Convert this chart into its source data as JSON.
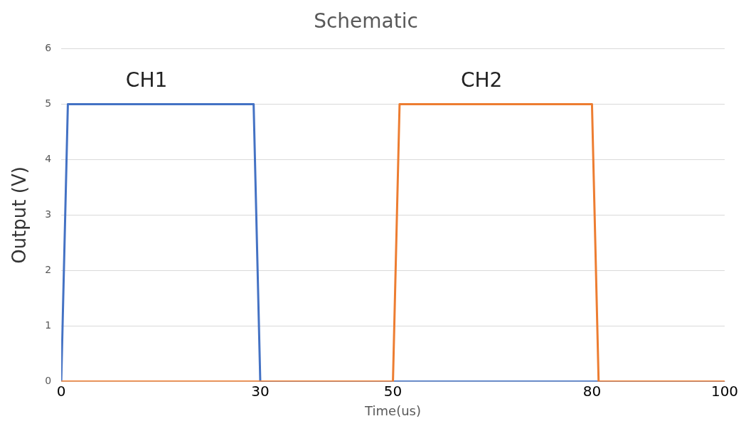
{
  "chart_data": {
    "type": "line",
    "title": "Schematic",
    "xlabel": "Time(us)",
    "ylabel": "Output (V)",
    "series": [
      {
        "name": "CH1",
        "color": "#4472c4",
        "x": [
          0,
          1,
          29,
          30,
          100
        ],
        "values": [
          0,
          5,
          5,
          0,
          0
        ]
      },
      {
        "name": "CH2",
        "color": "#ed7d31",
        "x": [
          0,
          50,
          51,
          80,
          81,
          100
        ],
        "values": [
          0,
          0,
          5,
          5,
          0,
          0
        ]
      }
    ],
    "xlim": [
      0,
      100
    ],
    "xticks": [
      0,
      30,
      50,
      80,
      100
    ],
    "ylim": [
      0,
      6
    ],
    "yticks": [
      0,
      1,
      2,
      3,
      4,
      5,
      6
    ],
    "grid": "y",
    "legend": false,
    "marker": "none",
    "line_style": "solid"
  }
}
